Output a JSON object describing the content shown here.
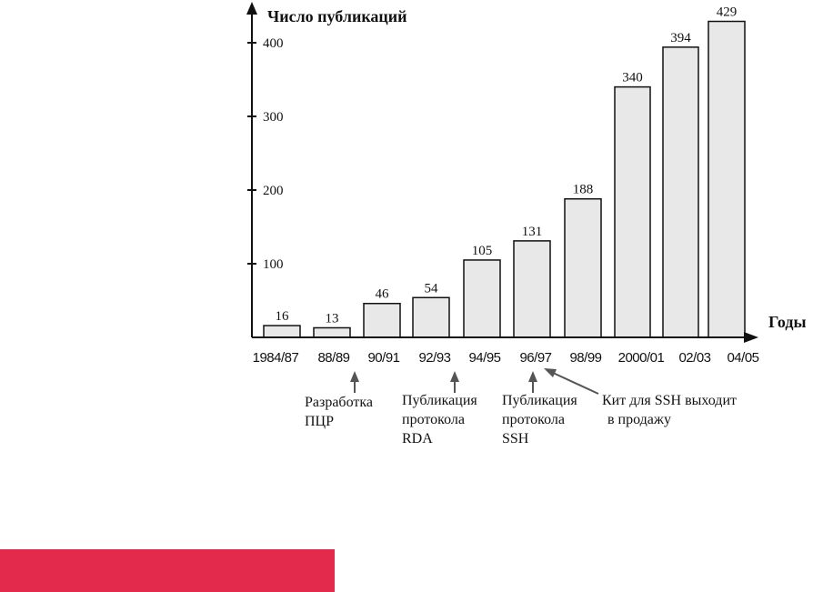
{
  "chart_data": {
    "type": "bar",
    "ylabel": "Число публикаций",
    "xlabel": "Годы",
    "categories": [
      "1984/87",
      "88/89",
      "90/91",
      "92/93",
      "94/95",
      "96/97",
      "98/99",
      "2000/01",
      "02/03",
      "04/05"
    ],
    "values": [
      16,
      13,
      46,
      54,
      105,
      131,
      188,
      340,
      394,
      429
    ],
    "value_labels": [
      "16",
      "13",
      "46",
      "54",
      "105",
      "131",
      "188",
      "340",
      "394",
      "429"
    ],
    "yticks": [
      100,
      200,
      300,
      400
    ],
    "ytick_labels": [
      "100",
      "200",
      "300",
      "400"
    ],
    "ylim": [
      0,
      440
    ],
    "grid": false,
    "bar_fill": "#e8e8e8",
    "bar_stroke": "#111111",
    "annotations": [
      {
        "lines": [
          "Разработка",
          "ПЦР"
        ]
      },
      {
        "lines": [
          "Публикация",
          "протокола",
          "RDA"
        ]
      },
      {
        "lines": [
          "Публикация",
          "протокола",
          "SSH"
        ]
      },
      {
        "lines": [
          "Кит для SSH выходит",
          "в продажу"
        ]
      }
    ]
  },
  "footer": {
    "band_color": "#e32a4c"
  }
}
